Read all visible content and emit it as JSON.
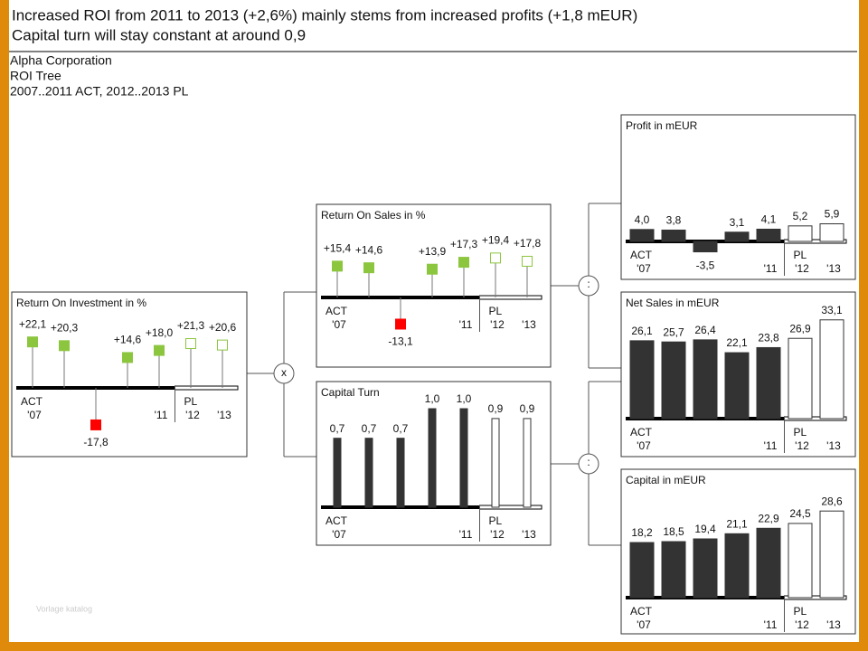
{
  "header": {
    "title": [
      "Increased ROI from 2011 to 2013 (+2,6%) mainly stems from increased profits (+1,8 mEUR)",
      "Capital turn will stay constant at around 0,9"
    ],
    "subtitle": [
      "Alpha Corporation",
      "ROI Tree",
      "2007..2011 ACT, 2012..2013 PL"
    ]
  },
  "operators": [
    "x",
    ":",
    ":"
  ],
  "watermark": "Vorlage katalog",
  "chart_data": [
    {
      "type": "pin",
      "title": "Return On Investment in %",
      "categories": [
        "'07",
        null,
        null,
        null,
        "'11",
        "'12",
        "'13"
      ],
      "negative_color": "#ff0000",
      "series": [
        {
          "name": "ACT",
          "color": "#8cc63f",
          "values": [
            22.1,
            20.3,
            -17.8,
            14.6,
            18.0,
            null,
            null
          ],
          "value_labels": [
            "+22,1",
            "+20,3",
            "-17,8",
            "+14,6",
            "+18,0",
            null,
            null
          ]
        },
        {
          "name": "PL",
          "color": "#8cc63f",
          "values": [
            null,
            null,
            null,
            null,
            null,
            21.3,
            20.6
          ],
          "value_labels": [
            null,
            null,
            null,
            null,
            null,
            "+21,3",
            "+20,6"
          ]
        }
      ]
    },
    {
      "type": "pin",
      "title": "Return On Sales in %",
      "categories": [
        "'07",
        null,
        null,
        null,
        "'11",
        "'12",
        "'13"
      ],
      "negative_color": "#ff0000",
      "series": [
        {
          "name": "ACT",
          "color": "#8cc63f",
          "values": [
            15.4,
            14.6,
            -13.1,
            13.9,
            17.3,
            null,
            null
          ],
          "value_labels": [
            "+15,4",
            "+14,6",
            "-13,1",
            "+13,9",
            "+17,3",
            null,
            null
          ]
        },
        {
          "name": "PL",
          "color": "#8cc63f",
          "values": [
            null,
            null,
            null,
            null,
            null,
            19.4,
            17.8
          ],
          "value_labels": [
            null,
            null,
            null,
            null,
            null,
            "+19,4",
            "+17,8"
          ]
        }
      ]
    },
    {
      "type": "bar",
      "title": "Capital Turn",
      "categories": [
        "'07",
        null,
        null,
        null,
        "'11",
        "'12",
        "'13"
      ],
      "series": [
        {
          "name": "ACT",
          "color": "#333333",
          "values": [
            0.7,
            0.7,
            0.7,
            1.0,
            1.0,
            null,
            null
          ],
          "value_labels": [
            "0,7",
            "0,7",
            "0,7",
            "1,0",
            "1,0",
            null,
            null
          ]
        },
        {
          "name": "PL",
          "color": "#333333",
          "values": [
            null,
            null,
            null,
            null,
            null,
            0.9,
            0.9
          ],
          "value_labels": [
            null,
            null,
            null,
            null,
            null,
            "0,9",
            "0,9"
          ]
        }
      ]
    },
    {
      "type": "bar",
      "title": "Profit in mEUR",
      "categories": [
        "'07",
        null,
        null,
        null,
        "'11",
        "'12",
        "'13"
      ],
      "series": [
        {
          "name": "ACT",
          "color": "#333333",
          "values": [
            4.0,
            3.8,
            -3.5,
            3.1,
            4.1,
            null,
            null
          ],
          "value_labels": [
            "4,0",
            "3,8",
            "-3,5",
            "3,1",
            "4,1",
            null,
            null
          ]
        },
        {
          "name": "PL",
          "color": "#333333",
          "values": [
            null,
            null,
            null,
            null,
            null,
            5.2,
            5.9
          ],
          "value_labels": [
            null,
            null,
            null,
            null,
            null,
            "5,2",
            "5,9"
          ]
        }
      ]
    },
    {
      "type": "bar",
      "title": "Net Sales in mEUR",
      "categories": [
        "'07",
        null,
        null,
        null,
        "'11",
        "'12",
        "'13"
      ],
      "series": [
        {
          "name": "ACT",
          "color": "#333333",
          "values": [
            26.1,
            25.7,
            26.4,
            22.1,
            23.8,
            null,
            null
          ],
          "value_labels": [
            "26,1",
            "25,7",
            "26,4",
            "22,1",
            "23,8",
            null,
            null
          ]
        },
        {
          "name": "PL",
          "color": "#333333",
          "values": [
            null,
            null,
            null,
            null,
            null,
            26.9,
            33.1
          ],
          "value_labels": [
            null,
            null,
            null,
            null,
            null,
            "26,9",
            "33,1"
          ]
        }
      ]
    },
    {
      "type": "bar",
      "title": "Capital in mEUR",
      "categories": [
        "'07",
        null,
        null,
        null,
        "'11",
        "'12",
        "'13"
      ],
      "series": [
        {
          "name": "ACT",
          "color": "#333333",
          "values": [
            18.2,
            18.5,
            19.4,
            21.1,
            22.9,
            null,
            null
          ],
          "value_labels": [
            "18,2",
            "18,5",
            "19,4",
            "21,1",
            "22,9",
            null,
            null
          ]
        },
        {
          "name": "PL",
          "color": "#333333",
          "values": [
            null,
            null,
            null,
            null,
            null,
            24.5,
            28.6
          ],
          "value_labels": [
            null,
            null,
            null,
            null,
            null,
            "24,5",
            "28,6"
          ]
        }
      ]
    }
  ]
}
